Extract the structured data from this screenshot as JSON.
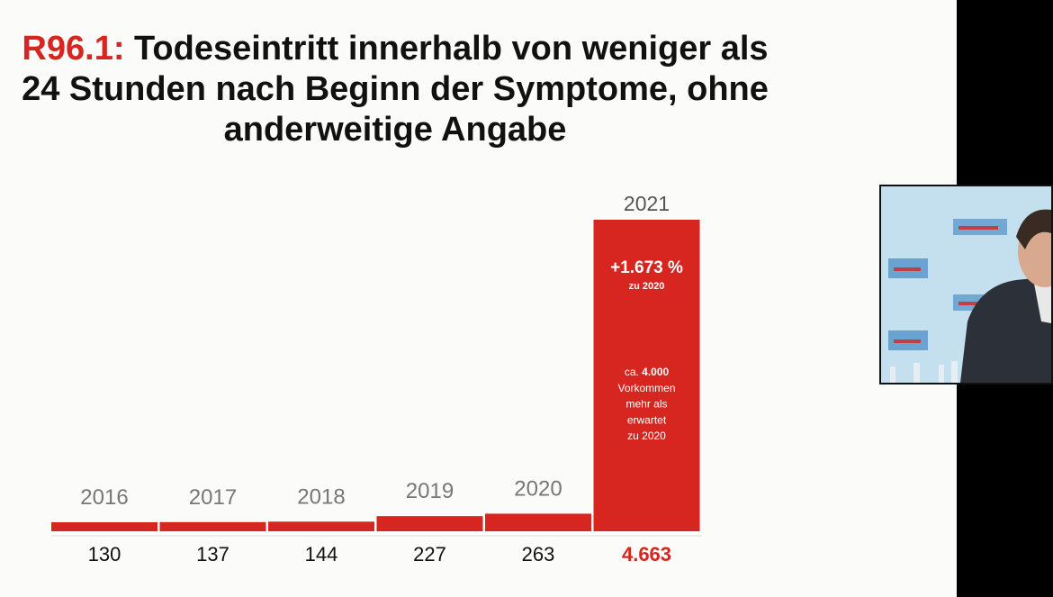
{
  "slide": {
    "title_code": "R96.1:",
    "title_line1_rest": " Todeseintritt innerhalb von weniger als",
    "title_line2": "24 Stunden nach Beginn der Symptome, ohne",
    "title_line3": "anderweitige Angabe"
  },
  "chart_data": {
    "type": "bar",
    "categories": [
      "2016",
      "2017",
      "2018",
      "2019",
      "2020",
      "2021"
    ],
    "values": [
      130,
      137,
      144,
      227,
      263,
      4663
    ],
    "value_labels": [
      "130",
      "137",
      "144",
      "227",
      "263",
      "4.663"
    ],
    "ylim": [
      0,
      4663
    ],
    "grid": false,
    "annotations": {
      "change_pct": "+1.673 %",
      "change_ref": "zu 2020",
      "excess_prefix": "ca. ",
      "excess_value": "4.000",
      "excess_lines": [
        "Vorkommen",
        "mehr als",
        "erwartet",
        "zu 2020"
      ]
    }
  },
  "colors": {
    "bar": "#d6261f",
    "highlight_value": "#d6261f",
    "year_label": "#777777",
    "year_label_last": "#555555",
    "value_label": "#111111",
    "background": "#fbfbf9"
  }
}
